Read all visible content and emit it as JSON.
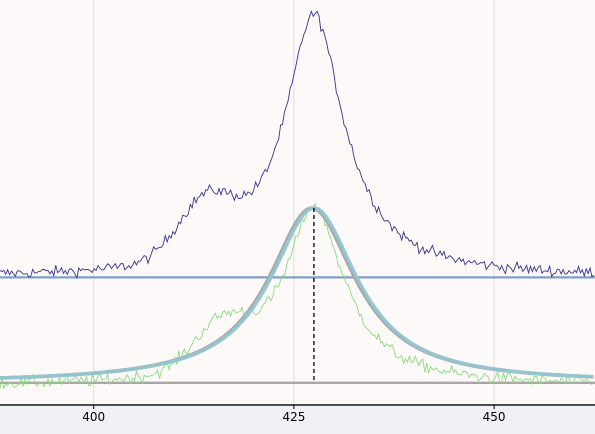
{
  "chart_data": {
    "type": "line",
    "xlim": [
      388.3,
      462.6
    ],
    "ylim": [
      -0.08,
      1.38
    ],
    "grid": {
      "x": true,
      "y": false
    },
    "xticks": [
      {
        "value": 400,
        "label": "400"
      },
      {
        "value": 425,
        "label": "425"
      },
      {
        "value": 450,
        "label": "450"
      }
    ],
    "peak": {
      "center": 427.5,
      "noisy_top_height": 0.95,
      "noisy_top_shoulder": {
        "center": 414.0,
        "height": 0.2,
        "sigma": 3.5
      },
      "noisy_top_baseline": 0.38,
      "noisy_top_noise": 0.02,
      "noisy_bottom_height": 0.65,
      "noisy_bottom_shoulder": {
        "center": 416.0,
        "height": 0.16,
        "sigma": 3.5
      },
      "noisy_bottom_baseline": -0.01,
      "noisy_bottom_noise": 0.022,
      "fit_height": 0.63,
      "fit_gamma": 6.6,
      "fit_baseline": 0.0
    },
    "series": [
      {
        "key": "data_offset",
        "color": "#3a3290",
        "width": 0.9,
        "style": "noisy"
      },
      {
        "key": "data",
        "color": "#88dd7a",
        "width": 0.9,
        "style": "noisy"
      },
      {
        "key": "fit_model_a",
        "color": "#a9a6a8",
        "width": 3.6,
        "style": "smooth"
      },
      {
        "key": "fit_model_b",
        "color": "#92c6d1",
        "width": 3.6,
        "style": "smooth"
      }
    ],
    "hlines": [
      {
        "key": "offset_level",
        "y": 0.38,
        "color": "#7f9fc8",
        "width": 2.2
      },
      {
        "key": "baseline",
        "y": 0.0,
        "color": "#a9a6a8",
        "width": 2.4
      }
    ],
    "vline": {
      "key": "peak_center",
      "x": 427.5,
      "color": "#000000",
      "dash": "4,3"
    },
    "colors": {
      "plot_bg": "#fdf9f9",
      "figure_bg": "#f0f1f4",
      "grid": "#dcdcdc",
      "axis": "#000000"
    }
  }
}
